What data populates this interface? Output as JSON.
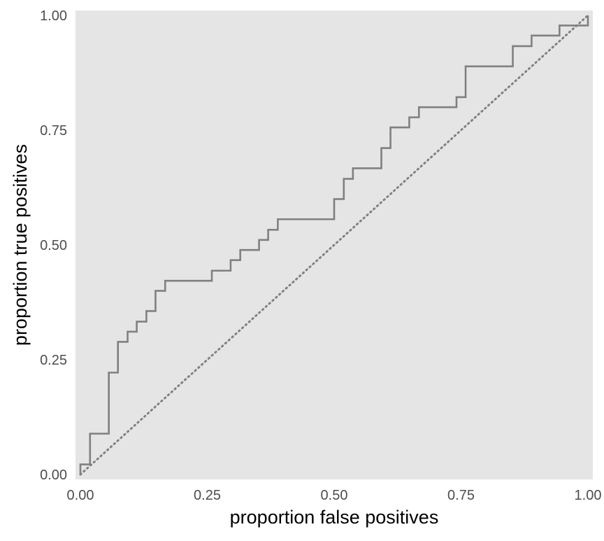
{
  "chart_data": {
    "type": "line",
    "title": "",
    "xlabel": "proportion false positives",
    "ylabel": "proportion true positives",
    "xlim": [
      0,
      1
    ],
    "ylim": [
      0,
      1
    ],
    "xticks": [
      "0.00",
      "0.25",
      "0.50",
      "0.75",
      "1.00"
    ],
    "yticks": [
      "0.00",
      "0.25",
      "0.50",
      "0.75",
      "1.00"
    ],
    "grid": false,
    "legend": "none",
    "colors": {
      "panel_background": "#e5e5e5",
      "roc_line": "#808080",
      "reference_line": "#808080",
      "tick_text": "#4d4d4d",
      "axis_title_text": "#000000"
    },
    "series": [
      {
        "style": "solid-step",
        "points": [
          [
            0.0,
            0.0
          ],
          [
            0.0,
            0.022
          ],
          [
            0.019,
            0.022
          ],
          [
            0.019,
            0.089
          ],
          [
            0.056,
            0.089
          ],
          [
            0.056,
            0.222
          ],
          [
            0.074,
            0.222
          ],
          [
            0.074,
            0.289
          ],
          [
            0.093,
            0.289
          ],
          [
            0.093,
            0.311
          ],
          [
            0.111,
            0.311
          ],
          [
            0.111,
            0.333
          ],
          [
            0.13,
            0.333
          ],
          [
            0.13,
            0.356
          ],
          [
            0.148,
            0.356
          ],
          [
            0.148,
            0.4
          ],
          [
            0.167,
            0.4
          ],
          [
            0.167,
            0.422
          ],
          [
            0.259,
            0.422
          ],
          [
            0.259,
            0.444
          ],
          [
            0.296,
            0.444
          ],
          [
            0.296,
            0.467
          ],
          [
            0.315,
            0.467
          ],
          [
            0.315,
            0.489
          ],
          [
            0.352,
            0.489
          ],
          [
            0.352,
            0.511
          ],
          [
            0.37,
            0.511
          ],
          [
            0.37,
            0.533
          ],
          [
            0.389,
            0.533
          ],
          [
            0.389,
            0.556
          ],
          [
            0.5,
            0.556
          ],
          [
            0.5,
            0.6
          ],
          [
            0.519,
            0.6
          ],
          [
            0.519,
            0.644
          ],
          [
            0.537,
            0.644
          ],
          [
            0.537,
            0.667
          ],
          [
            0.593,
            0.667
          ],
          [
            0.593,
            0.711
          ],
          [
            0.611,
            0.711
          ],
          [
            0.611,
            0.756
          ],
          [
            0.648,
            0.756
          ],
          [
            0.648,
            0.778
          ],
          [
            0.667,
            0.778
          ],
          [
            0.667,
            0.8
          ],
          [
            0.741,
            0.8
          ],
          [
            0.741,
            0.822
          ],
          [
            0.759,
            0.822
          ],
          [
            0.759,
            0.889
          ],
          [
            0.852,
            0.889
          ],
          [
            0.852,
            0.933
          ],
          [
            0.889,
            0.933
          ],
          [
            0.889,
            0.956
          ],
          [
            0.944,
            0.956
          ],
          [
            0.944,
            0.978
          ],
          [
            1.0,
            0.978
          ],
          [
            1.0,
            1.0
          ]
        ]
      },
      {
        "style": "dotted-diagonal",
        "points": [
          [
            0,
            0
          ],
          [
            1,
            1
          ]
        ]
      }
    ]
  }
}
